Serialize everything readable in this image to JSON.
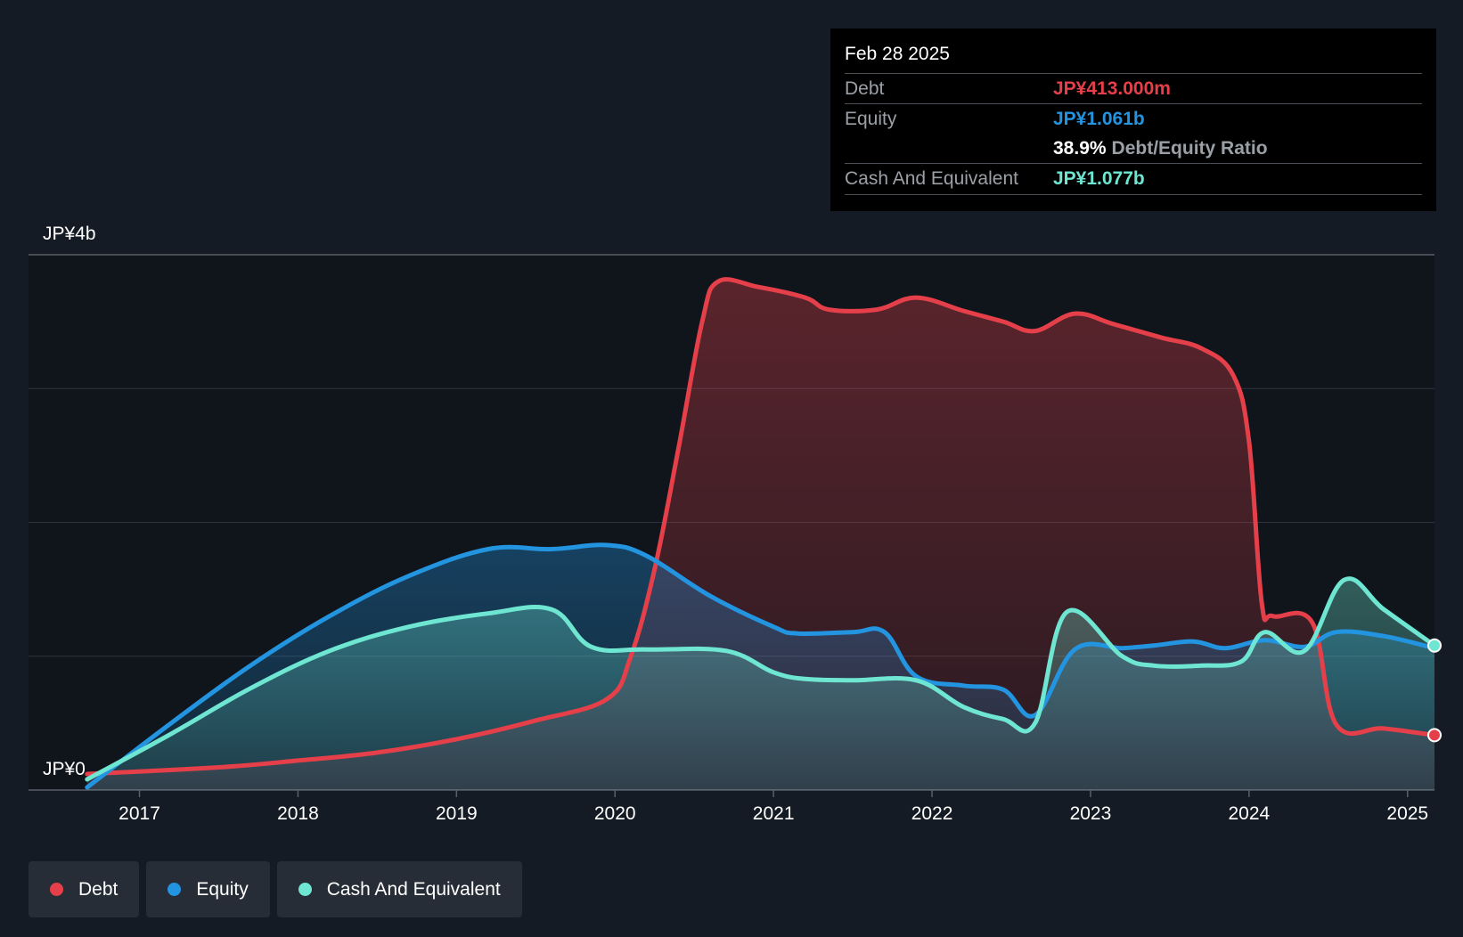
{
  "tooltip": {
    "date": "Feb 28 2025",
    "debt_label": "Debt",
    "debt_value": "JP¥413.000m",
    "equity_label": "Equity",
    "equity_value": "JP¥1.061b",
    "ratio_value": "38.9%",
    "ratio_label": "Debt/Equity Ratio",
    "cash_label": "Cash And Equivalent",
    "cash_value": "JP¥1.077b"
  },
  "legend": {
    "items": [
      {
        "label": "Debt",
        "color": "#e5404a"
      },
      {
        "label": "Equity",
        "color": "#2394e0"
      },
      {
        "label": "Cash And Equivalent",
        "color": "#6ee6d2"
      }
    ]
  },
  "chart_data": {
    "type": "area",
    "y_labels": {
      "top": "JP¥4b",
      "bottom": "JP¥0"
    },
    "ylim": [
      0,
      4
    ],
    "y_unit": "JP¥ billions",
    "xlim": [
      2016.3,
      2025.17
    ],
    "x_ticks": [
      2017,
      2018,
      2019,
      2020,
      2021,
      2022,
      2023,
      2024,
      2025
    ],
    "x_tick_labels": [
      "2017",
      "2018",
      "2019",
      "2020",
      "2021",
      "2022",
      "2023",
      "2024",
      "2025"
    ],
    "grid": true,
    "legend_position": "bottom-left",
    "series": [
      {
        "name": "Debt",
        "color": "#e5404a",
        "points": [
          [
            2016.67,
            0.12
          ],
          [
            2017.5,
            0.17
          ],
          [
            2018.0,
            0.22
          ],
          [
            2018.5,
            0.28
          ],
          [
            2019.0,
            0.38
          ],
          [
            2019.5,
            0.52
          ],
          [
            2019.95,
            0.68
          ],
          [
            2020.1,
            1.0
          ],
          [
            2020.25,
            1.65
          ],
          [
            2020.4,
            2.55
          ],
          [
            2020.55,
            3.5
          ],
          [
            2020.65,
            3.8
          ],
          [
            2020.9,
            3.76
          ],
          [
            2021.2,
            3.68
          ],
          [
            2021.35,
            3.59
          ],
          [
            2021.65,
            3.59
          ],
          [
            2021.9,
            3.68
          ],
          [
            2022.2,
            3.58
          ],
          [
            2022.45,
            3.5
          ],
          [
            2022.65,
            3.43
          ],
          [
            2022.9,
            3.56
          ],
          [
            2023.15,
            3.48
          ],
          [
            2023.45,
            3.38
          ],
          [
            2023.7,
            3.3
          ],
          [
            2023.9,
            3.1
          ],
          [
            2024.0,
            2.6
          ],
          [
            2024.08,
            1.4
          ],
          [
            2024.15,
            1.3
          ],
          [
            2024.4,
            1.25
          ],
          [
            2024.55,
            0.49
          ],
          [
            2024.85,
            0.46
          ],
          [
            2025.17,
            0.41
          ]
        ]
      },
      {
        "name": "Equity",
        "color": "#2394e0",
        "points": [
          [
            2016.67,
            0.02
          ],
          [
            2017.2,
            0.5
          ],
          [
            2017.7,
            0.93
          ],
          [
            2018.2,
            1.3
          ],
          [
            2018.7,
            1.6
          ],
          [
            2019.2,
            1.8
          ],
          [
            2019.6,
            1.8
          ],
          [
            2019.95,
            1.83
          ],
          [
            2020.2,
            1.75
          ],
          [
            2020.6,
            1.45
          ],
          [
            2021.0,
            1.22
          ],
          [
            2021.15,
            1.17
          ],
          [
            2021.5,
            1.18
          ],
          [
            2021.7,
            1.18
          ],
          [
            2021.9,
            0.85
          ],
          [
            2022.2,
            0.78
          ],
          [
            2022.45,
            0.75
          ],
          [
            2022.65,
            0.56
          ],
          [
            2022.9,
            1.05
          ],
          [
            2023.2,
            1.06
          ],
          [
            2023.4,
            1.08
          ],
          [
            2023.65,
            1.11
          ],
          [
            2023.85,
            1.06
          ],
          [
            2024.1,
            1.12
          ],
          [
            2024.35,
            1.07
          ],
          [
            2024.55,
            1.18
          ],
          [
            2024.85,
            1.15
          ],
          [
            2025.17,
            1.06
          ]
        ]
      },
      {
        "name": "Cash And Equivalent",
        "color": "#6ee6d2",
        "points": [
          [
            2016.67,
            0.08
          ],
          [
            2017.2,
            0.42
          ],
          [
            2017.7,
            0.76
          ],
          [
            2018.2,
            1.04
          ],
          [
            2018.7,
            1.22
          ],
          [
            2019.2,
            1.32
          ],
          [
            2019.6,
            1.35
          ],
          [
            2019.85,
            1.07
          ],
          [
            2020.2,
            1.05
          ],
          [
            2020.7,
            1.04
          ],
          [
            2021.0,
            0.88
          ],
          [
            2021.2,
            0.83
          ],
          [
            2021.5,
            0.82
          ],
          [
            2021.9,
            0.82
          ],
          [
            2022.2,
            0.62
          ],
          [
            2022.45,
            0.53
          ],
          [
            2022.65,
            0.5
          ],
          [
            2022.85,
            1.33
          ],
          [
            2023.2,
            1.0
          ],
          [
            2023.4,
            0.93
          ],
          [
            2023.7,
            0.93
          ],
          [
            2023.95,
            0.96
          ],
          [
            2024.1,
            1.18
          ],
          [
            2024.35,
            1.04
          ],
          [
            2024.6,
            1.57
          ],
          [
            2024.85,
            1.35
          ],
          [
            2025.17,
            1.08
          ]
        ]
      }
    ]
  }
}
